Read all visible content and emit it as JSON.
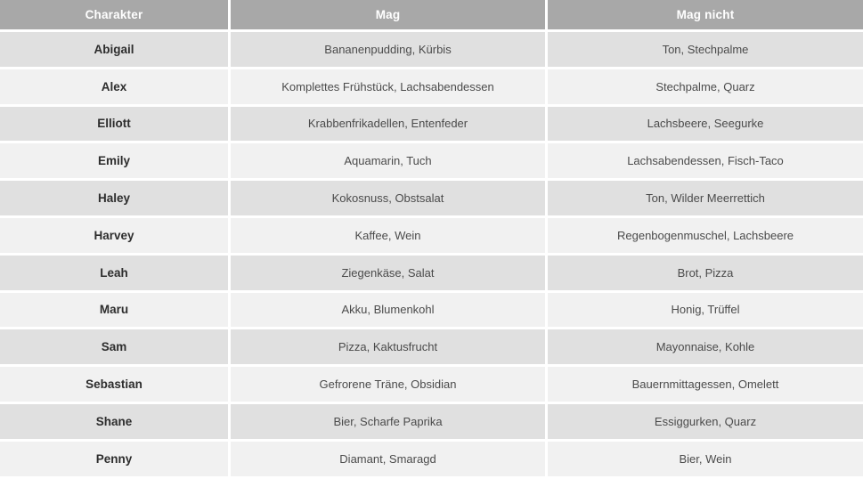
{
  "colors": {
    "header_bg": "#a8a8a8",
    "header_text": "#ffffff",
    "row_dark": "#e0e0e0",
    "row_light": "#f1f1f1",
    "name_text": "#2d2d2d",
    "cell_text": "#4b4b4b",
    "gap": "#ffffff"
  },
  "table": {
    "columns": [
      "Charakter",
      "Mag",
      "Mag nicht"
    ],
    "rows": [
      {
        "character": "Abigail",
        "likes": "Bananenpudding, Kürbis",
        "dislikes": "Ton, Stechpalme"
      },
      {
        "character": "Alex",
        "likes": "Komplettes Frühstück, Lachsabendessen",
        "dislikes": "Stechpalme, Quarz"
      },
      {
        "character": "Elliott",
        "likes": "Krabbenfrikadellen, Entenfeder",
        "dislikes": "Lachsbeere, Seegurke"
      },
      {
        "character": "Emily",
        "likes": "Aquamarin, Tuch",
        "dislikes": "Lachsabendessen, Fisch-Taco"
      },
      {
        "character": "Haley",
        "likes": "Kokosnuss, Obstsalat",
        "dislikes": "Ton, Wilder Meerrettich"
      },
      {
        "character": "Harvey",
        "likes": "Kaffee, Wein",
        "dislikes": "Regenbogenmuschel, Lachsbeere"
      },
      {
        "character": "Leah",
        "likes": "Ziegenkäse, Salat",
        "dislikes": "Brot, Pizza"
      },
      {
        "character": "Maru",
        "likes": "Akku, Blumenkohl",
        "dislikes": "Honig, Trüffel"
      },
      {
        "character": "Sam",
        "likes": "Pizza, Kaktusfrucht",
        "dislikes": "Mayonnaise, Kohle"
      },
      {
        "character": "Sebastian",
        "likes": "Gefrorene Träne, Obsidian",
        "dislikes": "Bauernmittagessen, Omelett"
      },
      {
        "character": "Shane",
        "likes": "Bier, Scharfe Paprika",
        "dislikes": "Essiggurken, Quarz"
      },
      {
        "character": "Penny",
        "likes": "Diamant, Smaragd",
        "dislikes": "Bier, Wein"
      }
    ]
  }
}
